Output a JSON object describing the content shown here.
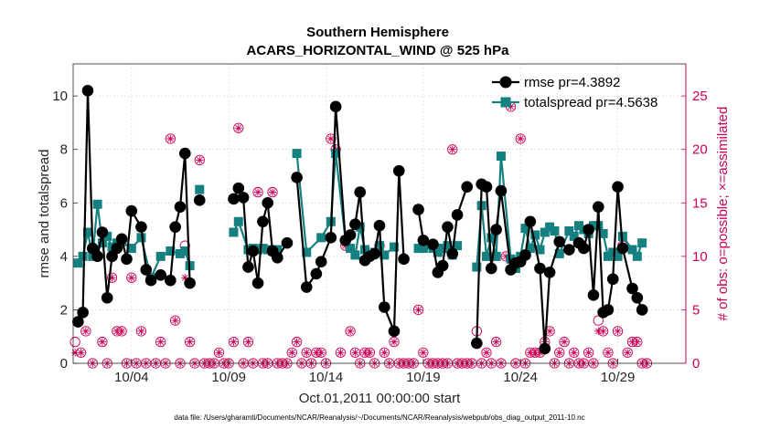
{
  "chart_data": {
    "type": "line",
    "title": "Southern Hemisphere",
    "subtitle": "ACARS_HORIZONTAL_WIND @ 525 hPa",
    "xlabel": "Oct.01,2011 00:00:00 start",
    "ylabel": "rmse and totalspread",
    "ylabel_right": "# of obs: o=possible; ×=assimilated",
    "footnote": "data file: /Users/gharamti/Documents/NCAR/Reanalysis/~/Documents/NCAR/Reanalysis/webpub/obs_diag_output_2011-10.nc",
    "xlim": [
      0.5,
      32.0
    ],
    "ylim": [
      0,
      11.2
    ],
    "ylim_right": [
      0,
      28
    ],
    "x_ticks": [
      3.5,
      8.5,
      13.5,
      18.5,
      23.5,
      28.5
    ],
    "x_tick_labels": [
      "10/04",
      "10/09",
      "10/14",
      "10/19",
      "10/24",
      "10/29"
    ],
    "y_ticks": [
      0,
      2,
      4,
      6,
      8,
      10
    ],
    "y_ticks_right": [
      0,
      5,
      10,
      15,
      20,
      25
    ],
    "grid": true,
    "legend_position": "top-right",
    "colors": {
      "rmse": "#000000",
      "totalspread": "#158080",
      "obs": "#cc0055"
    },
    "series": [
      {
        "name": "rmse pr=4.3892",
        "axis": "left",
        "segments": [
          [
            [
              0.75,
              1.55
            ],
            [
              1.0,
              1.9
            ],
            [
              1.25,
              10.2
            ],
            [
              1.5,
              4.3
            ],
            [
              1.75,
              4.0
            ],
            [
              2.0,
              4.9
            ],
            [
              2.25,
              2.45
            ],
            [
              2.5,
              4.0
            ],
            [
              2.75,
              4.3
            ],
            [
              3.0,
              4.65
            ],
            [
              3.25,
              3.9
            ],
            [
              3.5,
              5.7
            ],
            [
              4.0,
              5.1
            ],
            [
              4.25,
              3.5
            ],
            [
              4.5,
              3.1
            ],
            [
              5.0,
              3.3
            ],
            [
              5.5,
              3.1
            ],
            [
              5.75,
              5.1
            ],
            [
              6.0,
              5.85
            ],
            [
              6.25,
              7.85
            ],
            [
              6.5,
              3.0
            ]
          ],
          [
            [
              7.0,
              6.1
            ]
          ],
          [
            [
              8.75,
              6.15
            ],
            [
              9.0,
              6.55
            ],
            [
              9.25,
              6.2
            ],
            [
              9.5,
              3.6
            ],
            [
              9.75,
              4.2
            ],
            [
              10.0,
              3.0
            ],
            [
              10.25,
              5.3
            ],
            [
              10.5,
              6.0
            ],
            [
              10.75,
              4.2
            ],
            [
              11.0,
              3.95
            ],
            [
              11.5,
              4.5
            ]
          ],
          [
            [
              12.0,
              6.95
            ],
            [
              12.5,
              2.85
            ],
            [
              13.0,
              3.35
            ],
            [
              13.25,
              3.8
            ],
            [
              13.75,
              4.7
            ],
            [
              14.0,
              9.6
            ],
            [
              14.5,
              4.6
            ],
            [
              14.75,
              4.8
            ],
            [
              15.0,
              5.2
            ],
            [
              15.25,
              6.4
            ],
            [
              15.5,
              3.85
            ],
            [
              15.75,
              4.0
            ],
            [
              16.0,
              4.1
            ],
            [
              16.25,
              5.15
            ],
            [
              16.5,
              2.1
            ],
            [
              17.0,
              1.2
            ],
            [
              17.25,
              7.2
            ],
            [
              17.5,
              3.9
            ]
          ],
          [
            [
              18.25,
              5.75
            ],
            [
              18.5,
              4.6
            ],
            [
              19.0,
              4.45
            ],
            [
              19.25,
              3.4
            ],
            [
              19.5,
              3.65
            ],
            [
              19.75,
              5.1
            ],
            [
              20.0,
              4.1
            ],
            [
              20.25,
              5.55
            ],
            [
              20.75,
              6.6
            ]
          ],
          [
            [
              21.25,
              0.75
            ],
            [
              21.5,
              6.7
            ],
            [
              21.75,
              6.6
            ],
            [
              22.0,
              3.55
            ],
            [
              22.25,
              5.0
            ],
            [
              22.5,
              6.45
            ],
            [
              23.0,
              3.5
            ],
            [
              23.25,
              3.75
            ],
            [
              23.5,
              3.8
            ],
            [
              23.75,
              4.05
            ],
            [
              24.0,
              5.3
            ],
            [
              24.5,
              3.55
            ],
            [
              24.75,
              0.55
            ],
            [
              25.0,
              3.4
            ],
            [
              25.5,
              4.55
            ],
            [
              26.0,
              4.25
            ],
            [
              26.5,
              4.5
            ],
            [
              26.75,
              4.3
            ],
            [
              27.0,
              5.0
            ],
            [
              27.25,
              2.55
            ],
            [
              27.5,
              5.85
            ],
            [
              27.75,
              1.9
            ],
            [
              28.0,
              2.0
            ],
            [
              28.25,
              3.15
            ],
            [
              28.5,
              6.6
            ],
            [
              28.75,
              4.3
            ],
            [
              29.25,
              2.8
            ],
            [
              29.5,
              2.45
            ],
            [
              29.75,
              2.0
            ]
          ]
        ]
      },
      {
        "name": "totalspread pr=4.5638",
        "axis": "left",
        "segments": [
          [
            [
              0.75,
              3.75
            ],
            [
              1.0,
              4.0
            ],
            [
              1.25,
              4.9
            ],
            [
              1.5,
              4.0
            ],
            [
              1.75,
              5.95
            ],
            [
              2.0,
              4.5
            ],
            [
              2.25,
              4.75
            ],
            [
              2.5,
              4.35
            ],
            [
              2.75,
              4.5
            ],
            [
              3.0,
              4.55
            ],
            [
              3.5,
              4.3
            ],
            [
              4.0,
              4.7
            ],
            [
              4.5,
              3.2
            ],
            [
              5.0,
              4.0
            ],
            [
              5.5,
              4.2
            ],
            [
              6.0,
              4.1
            ],
            [
              6.25,
              4.2
            ],
            [
              6.5,
              3.65
            ]
          ],
          [
            [
              7.0,
              6.5
            ]
          ],
          [
            [
              8.75,
              4.9
            ],
            [
              9.0,
              5.3
            ],
            [
              9.5,
              4.25
            ],
            [
              9.75,
              4.3
            ],
            [
              10.0,
              4.25
            ],
            [
              10.25,
              4.3
            ],
            [
              10.5,
              4.25
            ],
            [
              10.75,
              4.2
            ],
            [
              11.0,
              4.25
            ]
          ],
          [
            [
              12.0,
              7.85
            ],
            [
              12.5,
              4.15
            ],
            [
              13.25,
              4.7
            ],
            [
              13.75,
              5.3
            ],
            [
              14.0,
              7.85
            ],
            [
              14.5,
              4.6
            ],
            [
              14.75,
              4.3
            ],
            [
              15.0,
              4.05
            ],
            [
              15.25,
              5.1
            ],
            [
              15.5,
              4.25
            ],
            [
              16.0,
              4.15
            ],
            [
              16.25,
              4.4
            ],
            [
              16.5,
              4.05
            ],
            [
              17.0,
              4.35
            ]
          ],
          [
            [
              18.25,
              4.3
            ],
            [
              18.5,
              4.3
            ],
            [
              19.0,
              4.3
            ],
            [
              19.25,
              4.15
            ],
            [
              19.5,
              4.3
            ],
            [
              19.75,
              4.4
            ],
            [
              20.0,
              4.05
            ],
            [
              20.25,
              4.4
            ]
          ],
          [
            [
              21.25,
              3.6
            ],
            [
              21.5,
              5.9
            ],
            [
              21.75,
              4.0
            ],
            [
              22.0,
              4.7
            ],
            [
              22.25,
              4.0
            ],
            [
              22.5,
              7.75
            ],
            [
              23.0,
              3.9
            ],
            [
              23.25,
              3.55
            ],
            [
              23.5,
              4.0
            ],
            [
              23.75,
              5.05
            ],
            [
              24.0,
              4.3
            ],
            [
              24.25,
              4.8
            ],
            [
              24.5,
              4.25
            ],
            [
              24.75,
              4.9
            ],
            [
              25.0,
              5.1
            ],
            [
              25.25,
              4.95
            ],
            [
              25.5,
              4.1
            ],
            [
              26.0,
              4.95
            ],
            [
              26.25,
              4.75
            ],
            [
              26.5,
              5.15
            ],
            [
              26.75,
              5.0
            ],
            [
              27.0,
              4.85
            ],
            [
              27.25,
              5.15
            ],
            [
              27.5,
              5.15
            ],
            [
              27.75,
              4.85
            ],
            [
              28.0,
              4.0
            ],
            [
              28.25,
              4.15
            ],
            [
              28.5,
              4.0
            ],
            [
              28.75,
              4.75
            ],
            [
              29.25,
              4.25
            ],
            [
              29.5,
              4.0
            ],
            [
              29.75,
              4.5
            ]
          ]
        ]
      }
    ],
    "obs_count_note": "obs points are [x, possible, assimilated] on right axis",
    "obs_counts": [
      [
        0.6,
        2,
        1
      ],
      [
        0.9,
        1,
        1
      ],
      [
        1.15,
        3,
        3
      ],
      [
        1.5,
        0,
        0
      ],
      [
        1.75,
        10,
        10
      ],
      [
        2.0,
        2,
        2
      ],
      [
        2.25,
        0,
        0
      ],
      [
        2.5,
        8,
        8
      ],
      [
        2.75,
        3,
        3
      ],
      [
        3.0,
        3,
        3
      ],
      [
        3.25,
        0,
        0
      ],
      [
        3.5,
        8,
        8
      ],
      [
        3.75,
        0,
        0
      ],
      [
        4.0,
        3,
        3
      ],
      [
        4.25,
        0,
        0
      ],
      [
        4.5,
        8,
        8
      ],
      [
        4.75,
        0,
        0
      ],
      [
        5.0,
        2,
        2
      ],
      [
        5.25,
        0,
        0
      ],
      [
        5.5,
        21,
        21
      ],
      [
        5.75,
        4,
        4
      ],
      [
        6.0,
        0,
        0
      ],
      [
        6.25,
        11,
        8
      ],
      [
        6.5,
        2,
        2
      ],
      [
        6.75,
        0,
        0
      ],
      [
        7.0,
        19,
        19
      ],
      [
        7.25,
        0,
        0
      ],
      [
        7.5,
        0,
        0
      ],
      [
        7.75,
        0,
        0
      ],
      [
        8.0,
        1,
        1
      ],
      [
        8.25,
        0,
        0
      ],
      [
        8.5,
        0,
        0
      ],
      [
        8.75,
        2,
        2
      ],
      [
        9.0,
        22,
        22
      ],
      [
        9.25,
        0,
        0
      ],
      [
        9.5,
        2,
        2
      ],
      [
        9.75,
        0,
        0
      ],
      [
        10.0,
        16,
        16
      ],
      [
        10.25,
        0,
        0
      ],
      [
        10.5,
        0,
        0
      ],
      [
        10.75,
        16,
        16
      ],
      [
        11.0,
        0,
        0
      ],
      [
        11.25,
        0,
        0
      ],
      [
        11.5,
        0,
        0
      ],
      [
        11.75,
        1,
        1
      ],
      [
        12.0,
        2,
        2
      ],
      [
        12.25,
        0,
        0
      ],
      [
        12.5,
        1,
        1
      ],
      [
        12.75,
        0,
        0
      ],
      [
        13.0,
        1,
        1
      ],
      [
        13.25,
        1,
        1
      ],
      [
        13.5,
        0,
        0
      ],
      [
        13.75,
        21,
        21
      ],
      [
        14.0,
        20,
        20
      ],
      [
        14.25,
        1,
        1
      ],
      [
        14.5,
        11,
        11
      ],
      [
        14.75,
        3,
        3
      ],
      [
        15.0,
        1,
        1
      ],
      [
        15.25,
        0,
        0
      ],
      [
        15.5,
        1,
        1
      ],
      [
        15.75,
        1,
        1
      ],
      [
        16.0,
        0,
        0
      ],
      [
        16.25,
        11,
        11
      ],
      [
        16.5,
        1,
        1
      ],
      [
        16.75,
        0,
        0
      ],
      [
        17.0,
        2,
        2
      ],
      [
        17.25,
        0,
        0
      ],
      [
        17.5,
        0,
        0
      ],
      [
        17.75,
        0,
        0
      ],
      [
        18.0,
        0,
        0
      ],
      [
        18.25,
        5,
        5
      ],
      [
        18.5,
        1,
        1
      ],
      [
        18.75,
        0,
        0
      ],
      [
        19.0,
        0,
        0
      ],
      [
        19.25,
        0,
        0
      ],
      [
        19.5,
        0,
        0
      ],
      [
        19.75,
        0,
        0
      ],
      [
        20.0,
        20,
        20
      ],
      [
        20.25,
        0,
        0
      ],
      [
        20.5,
        0,
        0
      ],
      [
        20.75,
        0,
        0
      ],
      [
        21.0,
        0,
        0
      ],
      [
        21.25,
        3,
        2
      ],
      [
        21.5,
        0,
        0
      ],
      [
        21.75,
        1,
        1
      ],
      [
        22.0,
        0,
        0
      ],
      [
        22.25,
        2,
        2
      ],
      [
        22.5,
        0,
        0
      ],
      [
        22.75,
        10,
        10
      ],
      [
        23.0,
        24,
        24
      ],
      [
        23.25,
        0,
        0
      ],
      [
        23.5,
        21,
        21
      ],
      [
        23.75,
        0,
        0
      ],
      [
        24.0,
        1,
        1
      ],
      [
        24.25,
        1,
        1
      ],
      [
        24.5,
        1,
        1
      ],
      [
        24.75,
        2,
        2
      ],
      [
        25.0,
        3,
        3
      ],
      [
        25.25,
        0,
        0
      ],
      [
        25.5,
        1,
        1
      ],
      [
        25.75,
        2,
        2
      ],
      [
        26.0,
        0,
        0
      ],
      [
        26.25,
        1,
        1
      ],
      [
        26.5,
        0,
        0
      ],
      [
        26.75,
        0,
        0
      ],
      [
        27.0,
        1,
        1
      ],
      [
        27.25,
        0,
        0
      ],
      [
        27.5,
        4,
        3
      ],
      [
        27.75,
        3,
        3
      ],
      [
        28.0,
        1,
        1
      ],
      [
        28.25,
        0,
        0
      ],
      [
        28.5,
        3,
        3
      ],
      [
        28.75,
        11,
        11
      ],
      [
        29.0,
        1,
        1
      ],
      [
        29.25,
        2,
        2
      ],
      [
        29.5,
        2,
        2
      ],
      [
        29.75,
        0,
        0
      ],
      [
        30.0,
        0,
        0
      ]
    ]
  }
}
